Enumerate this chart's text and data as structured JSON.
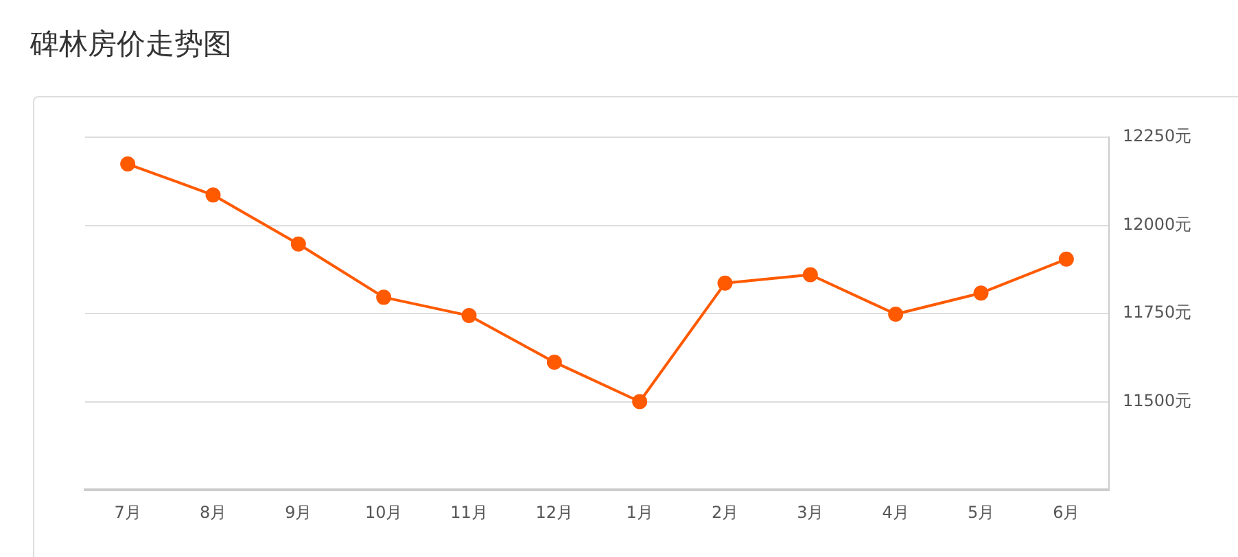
{
  "chart_data": {
    "type": "line",
    "title": "碑林房价走势图",
    "categories": [
      "7月",
      "8月",
      "9月",
      "10月",
      "11月",
      "12月",
      "1月",
      "2月",
      "3月",
      "4月",
      "5月",
      "6月"
    ],
    "series": [
      {
        "color": "#ff5a00",
        "values": [
          12174,
          12086,
          11947,
          11796,
          11744,
          11612,
          11500,
          11836,
          11860,
          11748,
          11808,
          11904
        ]
      }
    ],
    "ylim": [
      11250,
      12250
    ],
    "yticks": [
      {
        "value": 11250,
        "label": null
      },
      {
        "value": 11500,
        "label": "11500元"
      },
      {
        "value": 11750,
        "label": "11750元"
      },
      {
        "value": 12000,
        "label": "12000元"
      },
      {
        "value": 12250,
        "label": "12250元"
      }
    ],
    "grid": "y",
    "legend": false,
    "marker": "circle",
    "line_style": "solid"
  }
}
